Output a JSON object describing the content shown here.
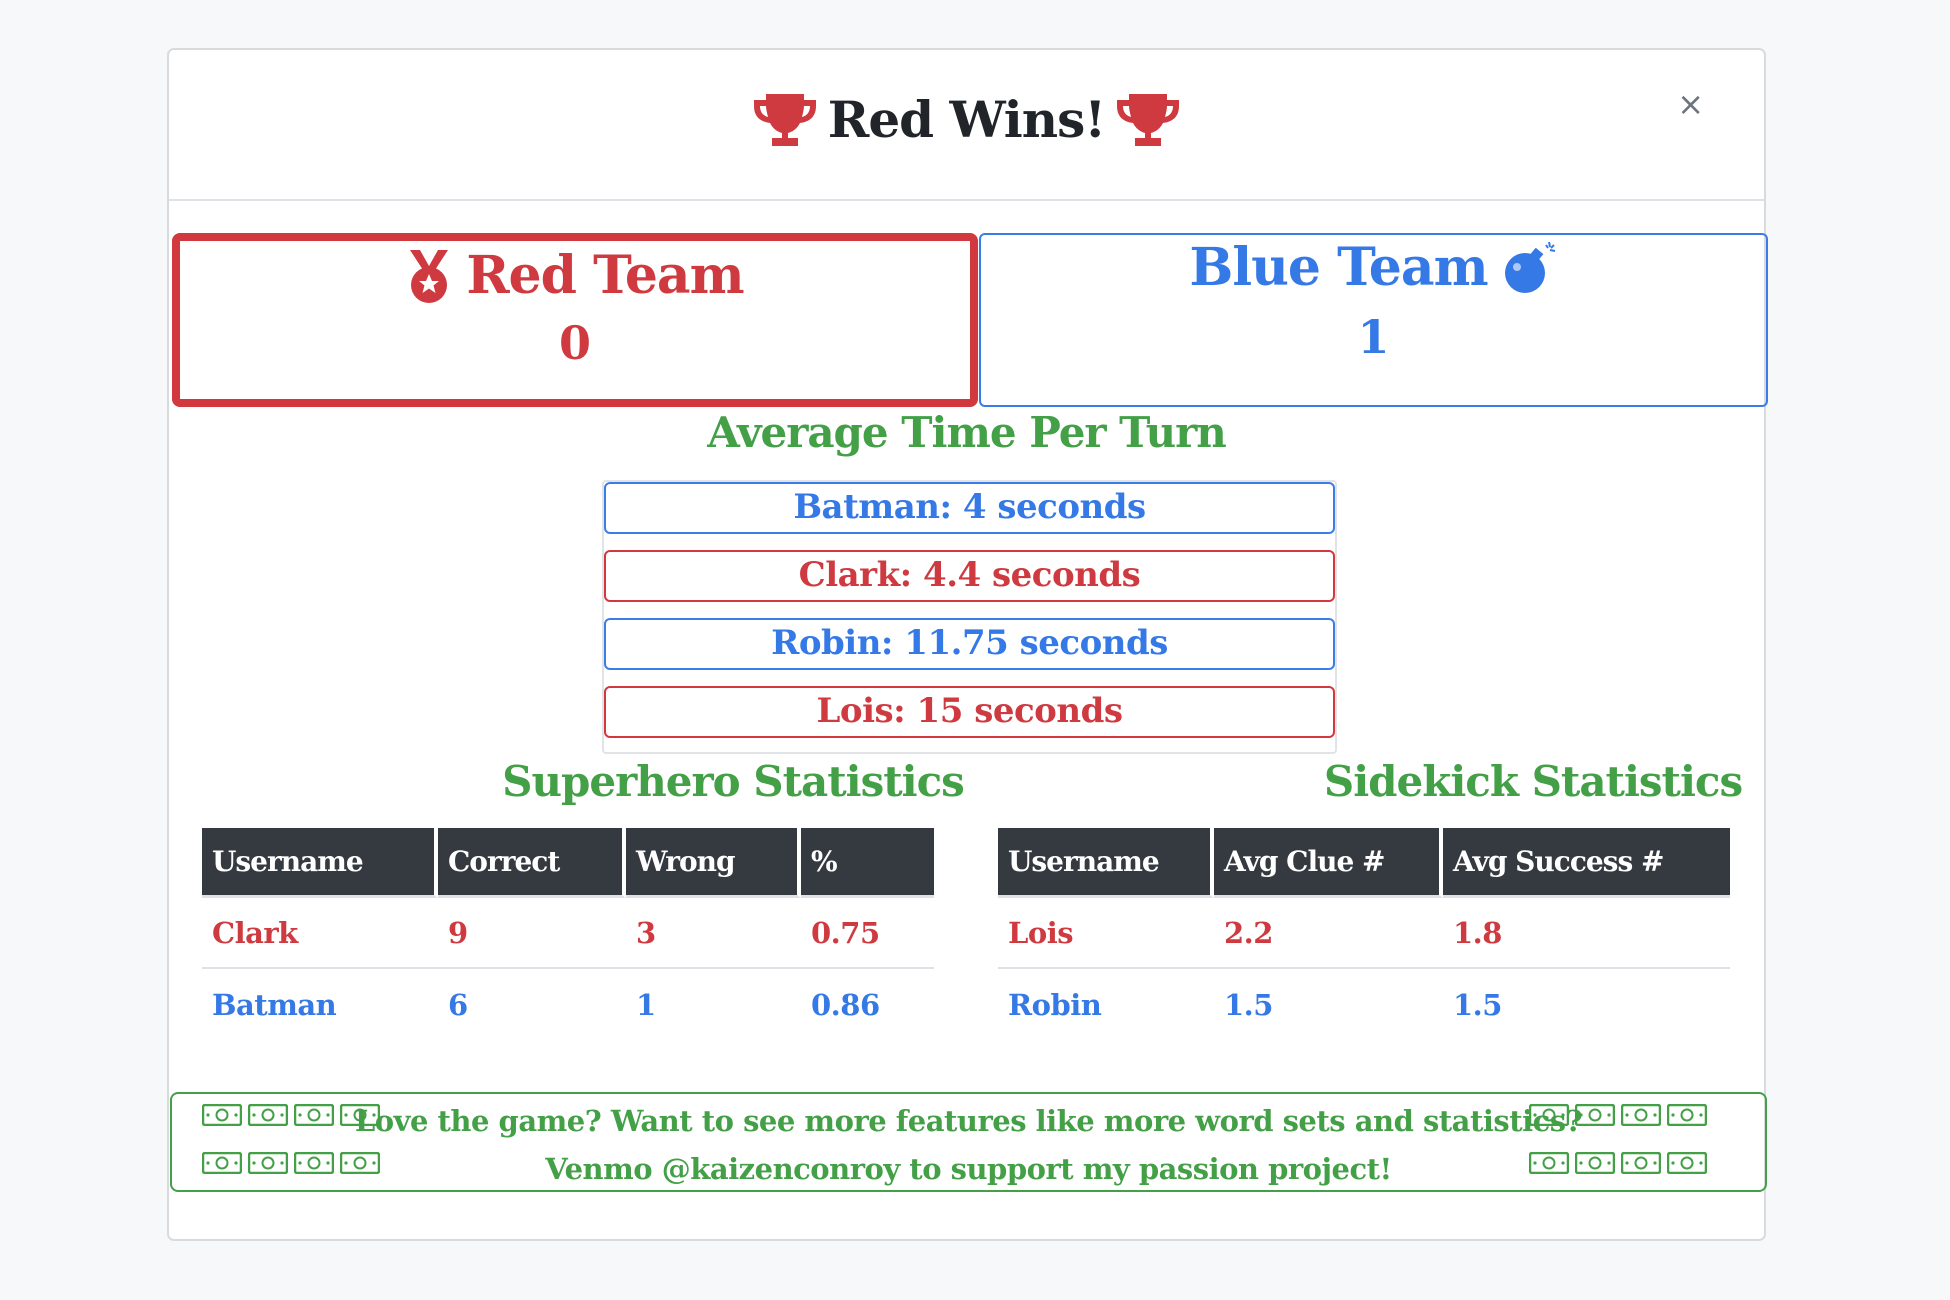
{
  "modal": {
    "title": "Red Wins!",
    "close_label": "×"
  },
  "teams": {
    "red": {
      "name": "Red Team",
      "score": "0",
      "color": "#cf3a40",
      "icon": "medal-icon"
    },
    "blue": {
      "name": "Blue Team",
      "score": "1",
      "color": "#3579e6",
      "icon": "bomb-icon"
    }
  },
  "average_time": {
    "title": "Average Time Per Turn",
    "items": [
      {
        "text": "Batman: 4 seconds",
        "team": "blue"
      },
      {
        "text": "Clark: 4.4 seconds",
        "team": "red"
      },
      {
        "text": "Robin: 11.75 seconds",
        "team": "blue"
      },
      {
        "text": "Lois: 15 seconds",
        "team": "red"
      }
    ]
  },
  "superhero_stats": {
    "title": "Superhero Statistics",
    "headers": [
      "Username",
      "Correct",
      "Wrong",
      "%"
    ],
    "rows": [
      {
        "team": "red",
        "cells": [
          "Clark",
          "9",
          "3",
          "0.75"
        ]
      },
      {
        "team": "blue",
        "cells": [
          "Batman",
          "6",
          "1",
          "0.86"
        ]
      }
    ]
  },
  "sidekick_stats": {
    "title": "Sidekick Statistics",
    "headers": [
      "Username",
      "Avg Clue #",
      "Avg Success #"
    ],
    "rows": [
      {
        "team": "red",
        "cells": [
          "Lois",
          "2.2",
          "1.8"
        ]
      },
      {
        "team": "blue",
        "cells": [
          "Robin",
          "1.5",
          "1.5"
        ]
      }
    ]
  },
  "support": {
    "line1": "Love the game? Want to see more features like more word sets and statistics?",
    "line2": "Venmo @kaizenconroy to support my passion project!",
    "icon": "money-icon",
    "accent": "#43a047"
  }
}
